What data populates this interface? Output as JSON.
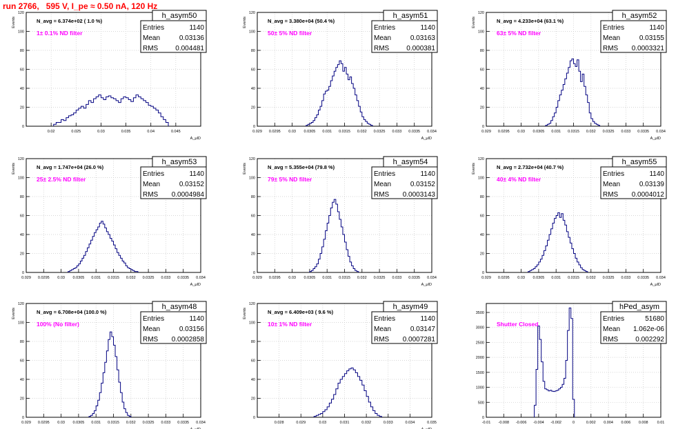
{
  "page": {
    "title": "run 2766,   595 V, I_pe ≈ 0.50 nA, 120 Hz"
  },
  "colors": {
    "histogram": "#000080",
    "annotation": "#ff00ff",
    "title": "#ff0000",
    "grid": "#c8c8c8"
  },
  "chart_data": [
    {
      "type": "bar",
      "name": "h_asym50",
      "stats": {
        "entries": "1140",
        "mean": "0.03136",
        "rms": "0.004481"
      },
      "navg": "N_avg = 6.374e+02 ( 1.0 %)",
      "note": "1± 0.1% ND filter",
      "xlim": [
        0.015,
        0.05
      ],
      "ylim": [
        0,
        120
      ],
      "xticks": [
        0.02,
        0.025,
        0.03,
        0.035,
        0.04,
        0.045
      ],
      "xticklabels": [
        "0.02",
        "0.025",
        "0.03",
        "0.035",
        "0.04",
        "0.045"
      ],
      "yticks": [
        0,
        20,
        40,
        60,
        80,
        100,
        120
      ],
      "yticklabels": [
        "0",
        "20",
        "40",
        "60",
        "80",
        "100",
        "120"
      ],
      "xlabel": "A_μID",
      "ylabel": "Events",
      "bins": {
        "start": 0.0205,
        "width": 0.0005,
        "counts": [
          2,
          4,
          4,
          7,
          6,
          9,
          11,
          12,
          14,
          17,
          19,
          21,
          19,
          23,
          27,
          25,
          29,
          31,
          33,
          30,
          28,
          31,
          32,
          30,
          29,
          27,
          25,
          29,
          31,
          30,
          28,
          26,
          30,
          33,
          31,
          29,
          27,
          25,
          22,
          21,
          19,
          17,
          14,
          10,
          7,
          4
        ]
      }
    },
    {
      "type": "bar",
      "name": "h_asym51",
      "stats": {
        "entries": "1140",
        "mean": "0.03163",
        "rms": "0.000381"
      },
      "navg": "N_avg = 3.380e+04 (50.4 %)",
      "note": "50± 5% ND filter",
      "xlim": [
        0.029,
        0.034
      ],
      "ylim": [
        0,
        120
      ],
      "xticks": [
        0.029,
        0.0295,
        0.03,
        0.0305,
        0.031,
        0.0315,
        0.032,
        0.0325,
        0.033,
        0.0335,
        0.034
      ],
      "xticklabels": [
        "0.029",
        "0.0295",
        "0.03",
        "0.0305",
        "0.031",
        "0.0315",
        "0.032",
        "0.0325",
        "0.033",
        "0.0335",
        "0.034"
      ],
      "yticks": [
        0,
        20,
        40,
        60,
        80,
        100,
        120
      ],
      "yticklabels": [
        "0",
        "20",
        "40",
        "60",
        "80",
        "100",
        "120"
      ],
      "xlabel": "A_μID",
      "ylabel": "Events",
      "bins": {
        "start": 0.0304,
        "width": 5e-05,
        "counts": [
          1,
          2,
          3,
          4,
          6,
          9,
          12,
          17,
          21,
          27,
          34,
          37,
          38,
          42,
          48,
          53,
          58,
          62,
          65,
          69,
          66,
          58,
          62,
          55,
          49,
          52,
          45,
          40,
          33,
          27,
          21,
          15,
          10,
          7,
          5,
          3,
          2,
          1
        ]
      }
    },
    {
      "type": "bar",
      "name": "h_asym52",
      "stats": {
        "entries": "1140",
        "mean": "0.03155",
        "rms": "0.0003321"
      },
      "navg": "N_avg = 4.233e+04 (63.1 %)",
      "note": "63± 5% ND filter",
      "xlim": [
        0.029,
        0.034
      ],
      "ylim": [
        0,
        120
      ],
      "xticks": [
        0.029,
        0.0295,
        0.03,
        0.0305,
        0.031,
        0.0315,
        0.032,
        0.0325,
        0.033,
        0.0335,
        0.034
      ],
      "xticklabels": [
        "0.029",
        "0.0295",
        "0.03",
        "0.0305",
        "0.031",
        "0.0315",
        "0.032",
        "0.0325",
        "0.033",
        "0.0335",
        "0.034"
      ],
      "yticks": [
        0,
        20,
        40,
        60,
        80,
        100,
        120
      ],
      "yticklabels": [
        "0",
        "20",
        "40",
        "60",
        "80",
        "100",
        "120"
      ],
      "xlabel": "A_μID",
      "ylabel": "Events",
      "bins": {
        "start": 0.0307,
        "width": 5e-05,
        "counts": [
          1,
          2,
          3,
          6,
          10,
          14,
          20,
          27,
          33,
          38,
          44,
          50,
          56,
          62,
          69,
          71,
          66,
          63,
          70,
          58,
          47,
          55,
          42,
          33,
          25,
          14,
          8,
          5,
          3,
          2,
          1
        ]
      }
    },
    {
      "type": "bar",
      "name": "h_asym53",
      "stats": {
        "entries": "1140",
        "mean": "0.03152",
        "rms": "0.0004984"
      },
      "navg": "N_avg = 1.747e+04 (26.0 %)",
      "note": "25± 2.5% ND filter",
      "xlim": [
        0.029,
        0.034
      ],
      "ylim": [
        0,
        120
      ],
      "xticks": [
        0.029,
        0.0295,
        0.03,
        0.0305,
        0.031,
        0.0315,
        0.032,
        0.0325,
        0.033,
        0.0335,
        0.034
      ],
      "xticklabels": [
        "0.029",
        "0.0295",
        "0.03",
        "0.0305",
        "0.031",
        "0.0315",
        "0.032",
        "0.0325",
        "0.033",
        "0.0335",
        "0.034"
      ],
      "yticks": [
        0,
        20,
        40,
        60,
        80,
        100,
        120
      ],
      "yticklabels": [
        "0",
        "20",
        "40",
        "60",
        "80",
        "100",
        "120"
      ],
      "xlabel": "A_μID",
      "ylabel": "Events",
      "bins": {
        "start": 0.0302,
        "width": 5e-05,
        "counts": [
          1,
          2,
          3,
          4,
          5,
          7,
          9,
          12,
          15,
          18,
          22,
          26,
          30,
          34,
          38,
          42,
          45,
          48,
          52,
          54,
          51,
          47,
          43,
          40,
          36,
          33,
          29,
          25,
          21,
          18,
          15,
          12,
          10,
          7,
          5,
          4,
          3,
          2,
          1,
          1
        ]
      }
    },
    {
      "type": "bar",
      "name": "h_asym54",
      "stats": {
        "entries": "1140",
        "mean": "0.03152",
        "rms": "0.0003143"
      },
      "navg": "N_avg = 5.355e+04 (79.8 %)",
      "note": "79± 5% ND filter",
      "xlim": [
        0.029,
        0.034
      ],
      "ylim": [
        0,
        120
      ],
      "xticks": [
        0.029,
        0.0295,
        0.03,
        0.0305,
        0.031,
        0.0315,
        0.032,
        0.0325,
        0.033,
        0.0335,
        0.034
      ],
      "xticklabels": [
        "0.029",
        "0.0295",
        "0.03",
        "0.0305",
        "0.031",
        "0.0315",
        "0.032",
        "0.0325",
        "0.033",
        "0.0335",
        "0.034"
      ],
      "yticks": [
        0,
        20,
        40,
        60,
        80,
        100,
        120
      ],
      "yticklabels": [
        "0",
        "20",
        "40",
        "60",
        "80",
        "100",
        "120"
      ],
      "xlabel": "A_μID",
      "ylabel": "Events",
      "bins": {
        "start": 0.0305,
        "width": 5e-05,
        "counts": [
          1,
          2,
          4,
          6,
          9,
          14,
          20,
          27,
          35,
          44,
          52,
          60,
          68,
          74,
          77,
          72,
          64,
          56,
          48,
          40,
          32,
          24,
          17,
          11,
          7,
          4,
          2,
          1
        ]
      }
    },
    {
      "type": "bar",
      "name": "h_asym55",
      "stats": {
        "entries": "1140",
        "mean": "0.03139",
        "rms": "0.0004012"
      },
      "navg": "N_avg = 2.732e+04 (40.7 %)",
      "note": "40± 4% ND filter",
      "xlim": [
        0.029,
        0.034
      ],
      "ylim": [
        0,
        120
      ],
      "xticks": [
        0.029,
        0.0295,
        0.03,
        0.0305,
        0.031,
        0.0315,
        0.032,
        0.0325,
        0.033,
        0.0335,
        0.034
      ],
      "xticklabels": [
        "0.029",
        "0.0295",
        "0.03",
        "0.0305",
        "0.031",
        "0.0315",
        "0.032",
        "0.0325",
        "0.033",
        "0.0335",
        "0.034"
      ],
      "yticks": [
        0,
        20,
        40,
        60,
        80,
        100,
        120
      ],
      "yticklabels": [
        "0",
        "20",
        "40",
        "60",
        "80",
        "100",
        "120"
      ],
      "xlabel": "A_μID",
      "ylabel": "Events",
      "bins": {
        "start": 0.0302,
        "width": 5e-05,
        "counts": [
          1,
          2,
          3,
          4,
          6,
          8,
          11,
          14,
          18,
          23,
          28,
          34,
          40,
          46,
          52,
          57,
          60,
          63,
          58,
          62,
          55,
          50,
          43,
          37,
          31,
          25,
          20,
          15,
          11,
          8,
          5,
          3,
          2,
          1
        ]
      }
    },
    {
      "type": "bar",
      "name": "h_asym48",
      "stats": {
        "entries": "1140",
        "mean": "0.03156",
        "rms": "0.0002858"
      },
      "navg": "N_avg = 6.708e+04 (100.0 %)",
      "note": "100% (No filter)",
      "xlim": [
        0.029,
        0.034
      ],
      "ylim": [
        0,
        120
      ],
      "xticks": [
        0.029,
        0.0295,
        0.03,
        0.0305,
        0.031,
        0.0315,
        0.032,
        0.0325,
        0.033,
        0.0335,
        0.034
      ],
      "xticklabels": [
        "0.029",
        "0.0295",
        "0.03",
        "0.0305",
        "0.031",
        "0.0315",
        "0.032",
        "0.0325",
        "0.033",
        "0.0335",
        "0.034"
      ],
      "yticks": [
        0,
        20,
        40,
        60,
        80,
        100,
        120
      ],
      "yticklabels": [
        "0",
        "20",
        "40",
        "60",
        "80",
        "100",
        "120"
      ],
      "xlabel": "A_μID",
      "ylabel": "Events",
      "bins": {
        "start": 0.0308,
        "width": 5e-05,
        "counts": [
          1,
          2,
          4,
          7,
          12,
          18,
          26,
          36,
          47,
          58,
          70,
          82,
          90,
          85,
          76,
          64,
          50,
          37,
          26,
          16,
          9,
          5,
          2,
          1
        ]
      }
    },
    {
      "type": "bar",
      "name": "h_asym49",
      "stats": {
        "entries": "1140",
        "mean": "0.03147",
        "rms": "0.0007281"
      },
      "navg": "N_avg = 6.409e+03 ( 9.6 %)",
      "note": "10± 1% ND filter",
      "xlim": [
        0.027,
        0.035
      ],
      "ylim": [
        0,
        120
      ],
      "xticks": [
        0.028,
        0.029,
        0.03,
        0.031,
        0.032,
        0.033,
        0.034,
        0.035
      ],
      "xticklabels": [
        "0.028",
        "0.029",
        "0.03",
        "0.031",
        "0.032",
        "0.033",
        "0.034",
        "0.035"
      ],
      "yticks": [
        0,
        20,
        40,
        60,
        80,
        100,
        120
      ],
      "yticklabels": [
        "0",
        "20",
        "40",
        "60",
        "80",
        "100",
        "120"
      ],
      "xlabel": "A_μID",
      "ylabel": "Events",
      "bins": {
        "start": 0.0296,
        "width": 0.0001,
        "counts": [
          1,
          2,
          3,
          4,
          6,
          8,
          11,
          15,
          19,
          24,
          30,
          36,
          40,
          43,
          46,
          49,
          51,
          52,
          50,
          47,
          43,
          39,
          34,
          28,
          22,
          16,
          11,
          7,
          4,
          2,
          1
        ]
      }
    },
    {
      "type": "bar",
      "name": "hPed_asym",
      "stats": {
        "entries": "51680",
        "mean": "1.062e-06",
        "rms": "0.002292"
      },
      "navg": "",
      "note": "Shutter Closed",
      "xlim": [
        -0.01,
        0.01
      ],
      "ylim": [
        0,
        3800
      ],
      "xticks": [
        -0.01,
        -0.008,
        -0.006,
        -0.004,
        -0.002,
        0,
        0.002,
        0.004,
        0.006,
        0.008,
        0.01
      ],
      "xticklabels": [
        "-0.01",
        "-0.008",
        "-0.006",
        "-0.004",
        "-0.002",
        "0",
        "0.002",
        "0.004",
        "0.006",
        "0.008",
        "0.01"
      ],
      "yticks": [
        0,
        500,
        1000,
        1500,
        2000,
        2500,
        3000,
        3500
      ],
      "yticklabels": [
        "0",
        "500",
        "1000",
        "1500",
        "2000",
        "2500",
        "3000",
        "3500"
      ],
      "xlabel": "",
      "ylabel": "",
      "bins": {
        "start": -0.0045,
        "width": 0.0002,
        "counts": [
          400,
          1600,
          3050,
          2600,
          1850,
          1200,
          950,
          920,
          880,
          900,
          870,
          860,
          880,
          900,
          950,
          1000,
          1100,
          1300,
          1900,
          2900,
          3650,
          3300,
          600
        ]
      }
    }
  ]
}
